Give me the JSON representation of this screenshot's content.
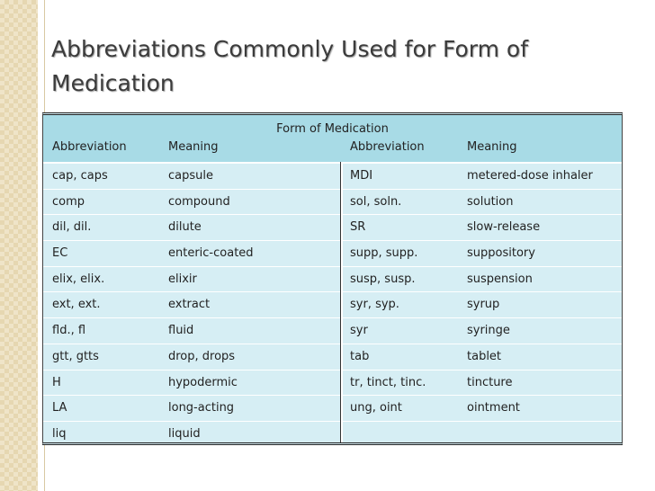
{
  "header": {
    "title": "Abbreviations Commonly Used for Form of Medication"
  },
  "table": {
    "caption": "Form of Medication",
    "columns": [
      "Abbreviation",
      "Meaning",
      "Abbreviation",
      "Meaning"
    ],
    "rows": [
      [
        "cap, caps",
        "capsule",
        "MDI",
        "metered-dose inhaler"
      ],
      [
        "comp",
        "compound",
        "sol, soln.",
        "solution"
      ],
      [
        "dil, dil.",
        "dilute",
        "SR",
        "slow-release"
      ],
      [
        "EC",
        "enteric-coated",
        "supp, supp.",
        "suppository"
      ],
      [
        "elix, elix.",
        "elixir",
        "susp, susp.",
        "suspension"
      ],
      [
        "ext, ext.",
        "extract",
        "syr, syp.",
        "syrup"
      ],
      [
        "fld., fl",
        "fluid",
        "syr",
        "syringe"
      ],
      [
        "gtt, gtts",
        "drop, drops",
        "tab",
        "tablet"
      ],
      [
        "H",
        "hypodermic",
        "tr, tinct, tinc.",
        "tincture"
      ],
      [
        "LA",
        "long-acting",
        "ung, oint",
        "ointment"
      ],
      [
        "liq",
        "liquid"
      ]
    ]
  }
}
